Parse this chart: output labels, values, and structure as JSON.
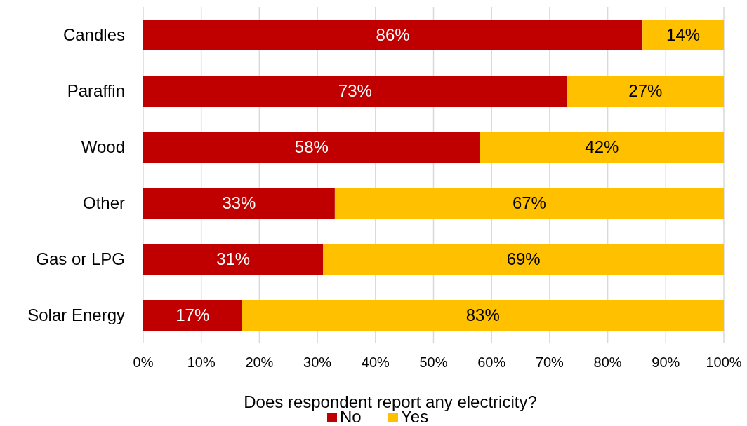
{
  "chart_data": {
    "type": "bar",
    "orientation": "horizontal",
    "stacked": true,
    "categories": [
      "Candles",
      "Paraffin",
      "Wood",
      "Other",
      "Gas or LPG",
      "Solar Energy"
    ],
    "series": [
      {
        "name": "No",
        "color": "#c00000",
        "values": [
          86,
          73,
          58,
          33,
          31,
          17
        ],
        "value_labels": [
          "86%",
          "73%",
          "58%",
          "33%",
          "31%",
          "17%"
        ]
      },
      {
        "name": "Yes",
        "color": "#ffc000",
        "values": [
          14,
          27,
          42,
          67,
          69,
          83
        ],
        "value_labels": [
          "14%",
          "27%",
          "42%",
          "67%",
          "69%",
          "83%"
        ]
      }
    ],
    "xlim": [
      0,
      100
    ],
    "xticks": [
      {
        "value": 0,
        "label": "0%"
      },
      {
        "value": 10,
        "label": "10%"
      },
      {
        "value": 20,
        "label": "20%"
      },
      {
        "value": 30,
        "label": "30%"
      },
      {
        "value": 40,
        "label": "40%"
      },
      {
        "value": 50,
        "label": "50%"
      },
      {
        "value": 60,
        "label": "60%"
      },
      {
        "value": 70,
        "label": "70%"
      },
      {
        "value": 80,
        "label": "80%"
      },
      {
        "value": 90,
        "label": "90%"
      },
      {
        "value": 100,
        "label": "100%"
      }
    ],
    "legend_title": "Does respondent report any electricity?",
    "legend": "bottom",
    "grid": "x"
  }
}
